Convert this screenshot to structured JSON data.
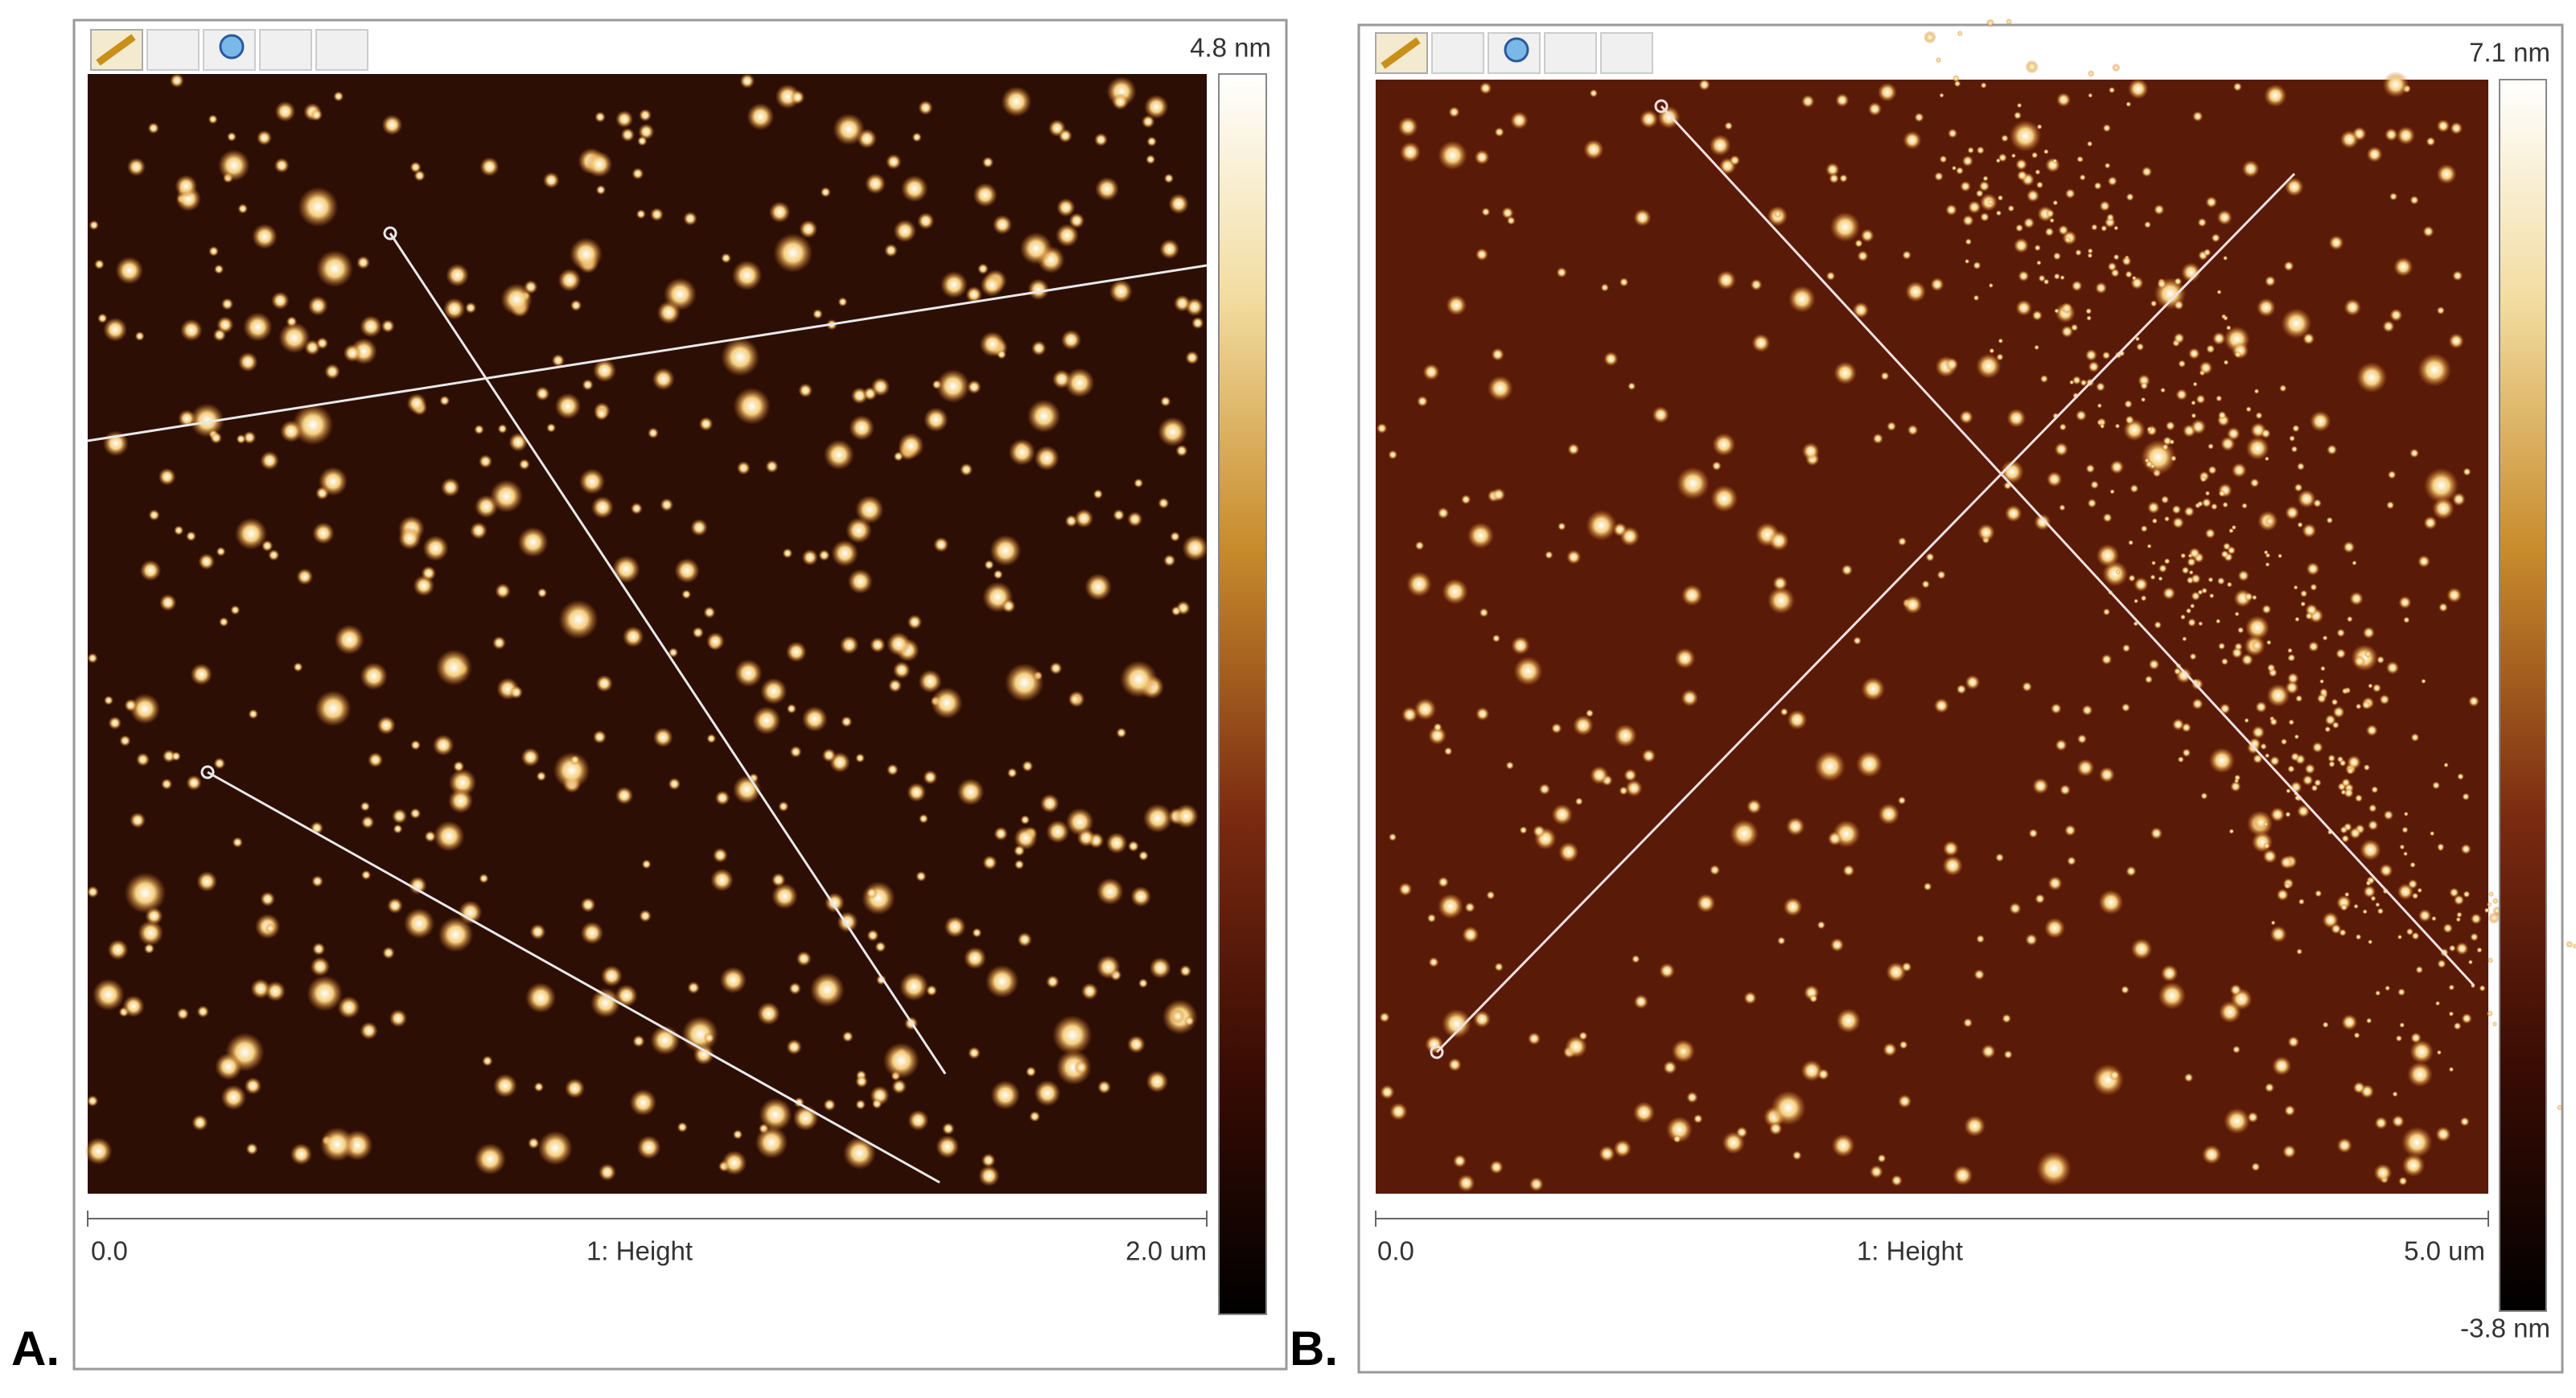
{
  "panels": [
    {
      "label": "A.",
      "color_max": "4.8 nm",
      "axis_start": "0.0",
      "channel": "1: Height",
      "axis_end": "2.0 um"
    },
    {
      "label": "B.",
      "color_max": "7.1 nm",
      "color_min": "-3.8 nm",
      "axis_start": "0.0",
      "channel": "1: Height",
      "axis_end": "5.0 um"
    }
  ]
}
